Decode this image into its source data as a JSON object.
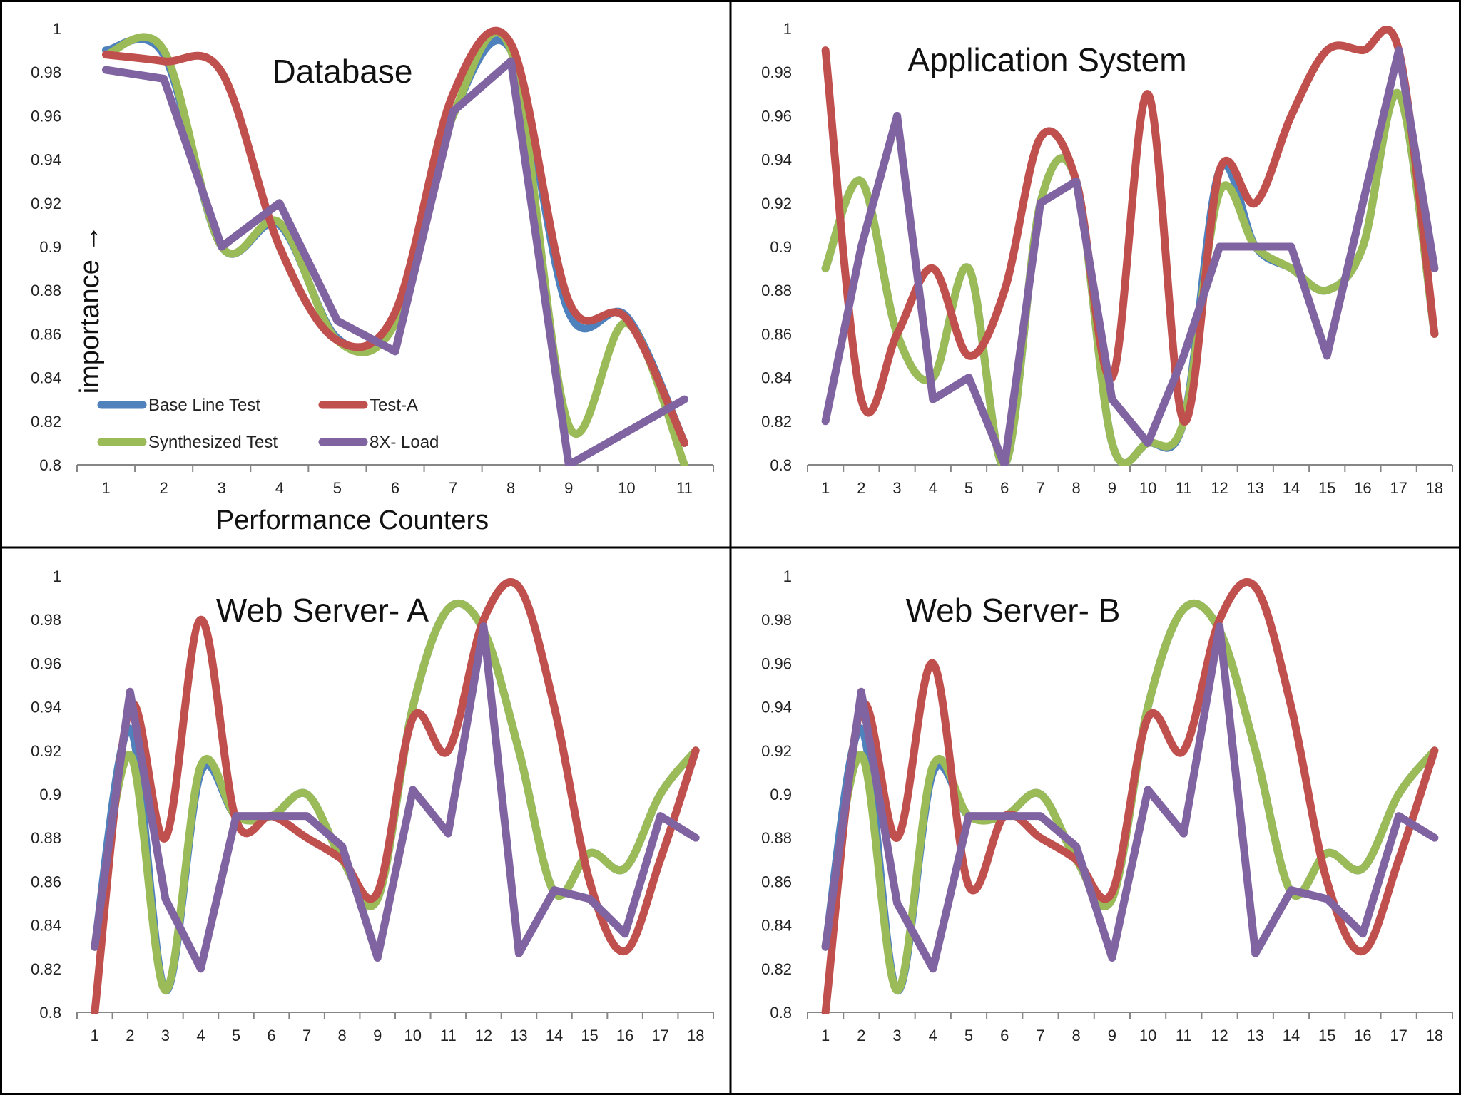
{
  "figure": {
    "ylabel": "importance →",
    "xlabel": "Performance Counters"
  },
  "colors": {
    "Base Line Test": "#4f81bd",
    "Test-A": "#c0504d",
    "Synthesized Test": "#9bbb59",
    "8X- Load": "#8064a2"
  },
  "legend": [
    "Base Line Test",
    "Test-A",
    "Synthesized Test",
    "8X- Load"
  ],
  "chart_data": [
    {
      "type": "line",
      "title": "Database",
      "xlabel": "Performance Counters",
      "ylabel": "importance →",
      "ylim": [
        0.8,
        1.0
      ],
      "yticks": [
        "0.8",
        "0.82",
        "0.84",
        "0.86",
        "0.88",
        "0.9",
        "0.92",
        "0.94",
        "0.96",
        "0.98",
        "1"
      ],
      "categories": [
        "1",
        "2",
        "3",
        "4",
        "5",
        "6",
        "7",
        "8",
        "9",
        "10",
        "11"
      ],
      "series": [
        {
          "name": "Base Line Test",
          "smooth": true,
          "values": [
            0.99,
            0.988,
            0.9,
            0.91,
            0.858,
            0.865,
            0.96,
            0.99,
            0.87,
            0.868,
            0.81
          ]
        },
        {
          "name": "Test-A",
          "smooth": true,
          "values": [
            0.988,
            0.985,
            0.98,
            0.9,
            0.857,
            0.87,
            0.97,
            0.993,
            0.875,
            0.867,
            0.81
          ]
        },
        {
          "name": "Synthesized Test",
          "smooth": true,
          "values": [
            0.988,
            0.99,
            0.9,
            0.911,
            0.857,
            0.865,
            0.96,
            0.99,
            0.818,
            0.865,
            0.8
          ]
        },
        {
          "name": "8X- Load",
          "smooth": false,
          "values": [
            0.981,
            0.977,
            0.9,
            0.92,
            0.866,
            0.852,
            0.962,
            0.985,
            0.8,
            0.815,
            0.83
          ]
        }
      ]
    },
    {
      "type": "line",
      "title": "Application System",
      "xlabel": "",
      "ylabel": "",
      "ylim": [
        0.8,
        1.0
      ],
      "yticks": [
        "0.8",
        "0.82",
        "0.84",
        "0.86",
        "0.88",
        "0.9",
        "0.92",
        "0.94",
        "0.96",
        "0.98",
        "1"
      ],
      "categories": [
        "1",
        "2",
        "3",
        "4",
        "5",
        "6",
        "7",
        "8",
        "9",
        "10",
        "11",
        "12",
        "13",
        "14",
        "15",
        "16",
        "17",
        "18"
      ],
      "series": [
        {
          "name": "Base Line Test",
          "smooth": true,
          "values": [
            0.89,
            0.93,
            0.86,
            0.84,
            0.89,
            0.8,
            0.92,
            0.93,
            0.81,
            0.81,
            0.82,
            0.935,
            0.9,
            0.89,
            0.88,
            0.9,
            0.97,
            0.86
          ]
        },
        {
          "name": "Test-A",
          "smooth": true,
          "values": [
            0.99,
            0.83,
            0.86,
            0.89,
            0.85,
            0.88,
            0.95,
            0.93,
            0.84,
            0.97,
            0.82,
            0.935,
            0.92,
            0.96,
            0.99,
            0.99,
            0.99,
            0.86
          ]
        },
        {
          "name": "Synthesized Test",
          "smooth": true,
          "values": [
            0.89,
            0.93,
            0.86,
            0.84,
            0.89,
            0.8,
            0.92,
            0.93,
            0.81,
            0.81,
            0.82,
            0.925,
            0.9,
            0.89,
            0.88,
            0.9,
            0.97,
            0.86
          ]
        },
        {
          "name": "8X- Load",
          "smooth": false,
          "values": [
            0.82,
            0.9,
            0.96,
            0.83,
            0.84,
            0.8,
            0.92,
            0.93,
            0.83,
            0.81,
            0.85,
            0.9,
            0.9,
            0.9,
            0.85,
            0.92,
            0.99,
            0.89
          ]
        }
      ]
    },
    {
      "type": "line",
      "title": "Web Server- A",
      "xlabel": "",
      "ylabel": "",
      "ylim": [
        0.8,
        1.0
      ],
      "yticks": [
        "0.8",
        "0.82",
        "0.84",
        "0.86",
        "0.88",
        "0.9",
        "0.92",
        "0.94",
        "0.96",
        "0.98",
        "1"
      ],
      "categories": [
        "1",
        "2",
        "3",
        "4",
        "5",
        "6",
        "7",
        "8",
        "9",
        "10",
        "11",
        "12",
        "13",
        "14",
        "15",
        "16",
        "17",
        "18"
      ],
      "series": [
        {
          "name": "Base Line Test",
          "smooth": true,
          "values": [
            0.83,
            0.93,
            0.81,
            0.91,
            0.89,
            0.89,
            0.9,
            0.87,
            0.852,
            0.94,
            0.985,
            0.975,
            0.92,
            0.855,
            0.873,
            0.866,
            0.9,
            0.92
          ]
        },
        {
          "name": "Test-A",
          "smooth": true,
          "values": [
            0.8,
            0.94,
            0.88,
            0.98,
            0.888,
            0.89,
            0.88,
            0.87,
            0.855,
            0.935,
            0.92,
            0.98,
            0.995,
            0.94,
            0.86,
            0.828,
            0.87,
            0.92
          ]
        },
        {
          "name": "Synthesized Test",
          "smooth": true,
          "values": [
            0.83,
            0.918,
            0.81,
            0.913,
            0.89,
            0.89,
            0.9,
            0.87,
            0.852,
            0.94,
            0.985,
            0.975,
            0.92,
            0.855,
            0.873,
            0.866,
            0.9,
            0.92
          ]
        },
        {
          "name": "8X- Load",
          "smooth": false,
          "values": [
            0.83,
            0.947,
            0.852,
            0.82,
            0.89,
            0.89,
            0.89,
            0.876,
            0.825,
            0.902,
            0.882,
            0.977,
            0.827,
            0.856,
            0.852,
            0.836,
            0.89,
            0.88
          ]
        }
      ]
    },
    {
      "type": "line",
      "title": "Web Server- B",
      "xlabel": "",
      "ylabel": "",
      "ylim": [
        0.8,
        1.0
      ],
      "yticks": [
        "0.8",
        "0.82",
        "0.84",
        "0.86",
        "0.88",
        "0.9",
        "0.92",
        "0.94",
        "0.96",
        "0.98",
        "1"
      ],
      "categories": [
        "1",
        "2",
        "3",
        "4",
        "5",
        "6",
        "7",
        "8",
        "9",
        "10",
        "11",
        "12",
        "13",
        "14",
        "15",
        "16",
        "17",
        "18"
      ],
      "series": [
        {
          "name": "Base Line Test",
          "smooth": true,
          "values": [
            0.83,
            0.93,
            0.81,
            0.91,
            0.89,
            0.89,
            0.9,
            0.87,
            0.852,
            0.94,
            0.985,
            0.975,
            0.92,
            0.855,
            0.873,
            0.866,
            0.9,
            0.92
          ]
        },
        {
          "name": "Test-A",
          "smooth": true,
          "values": [
            0.8,
            0.94,
            0.88,
            0.96,
            0.858,
            0.89,
            0.88,
            0.87,
            0.855,
            0.935,
            0.92,
            0.98,
            0.995,
            0.94,
            0.86,
            0.828,
            0.87,
            0.92
          ]
        },
        {
          "name": "Synthesized Test",
          "smooth": true,
          "values": [
            0.83,
            0.918,
            0.81,
            0.913,
            0.89,
            0.89,
            0.9,
            0.87,
            0.852,
            0.94,
            0.985,
            0.975,
            0.92,
            0.855,
            0.873,
            0.866,
            0.9,
            0.92
          ]
        },
        {
          "name": "8X- Load",
          "smooth": false,
          "values": [
            0.83,
            0.947,
            0.85,
            0.82,
            0.89,
            0.89,
            0.89,
            0.876,
            0.825,
            0.902,
            0.882,
            0.977,
            0.827,
            0.856,
            0.852,
            0.836,
            0.89,
            0.88
          ]
        }
      ]
    }
  ]
}
